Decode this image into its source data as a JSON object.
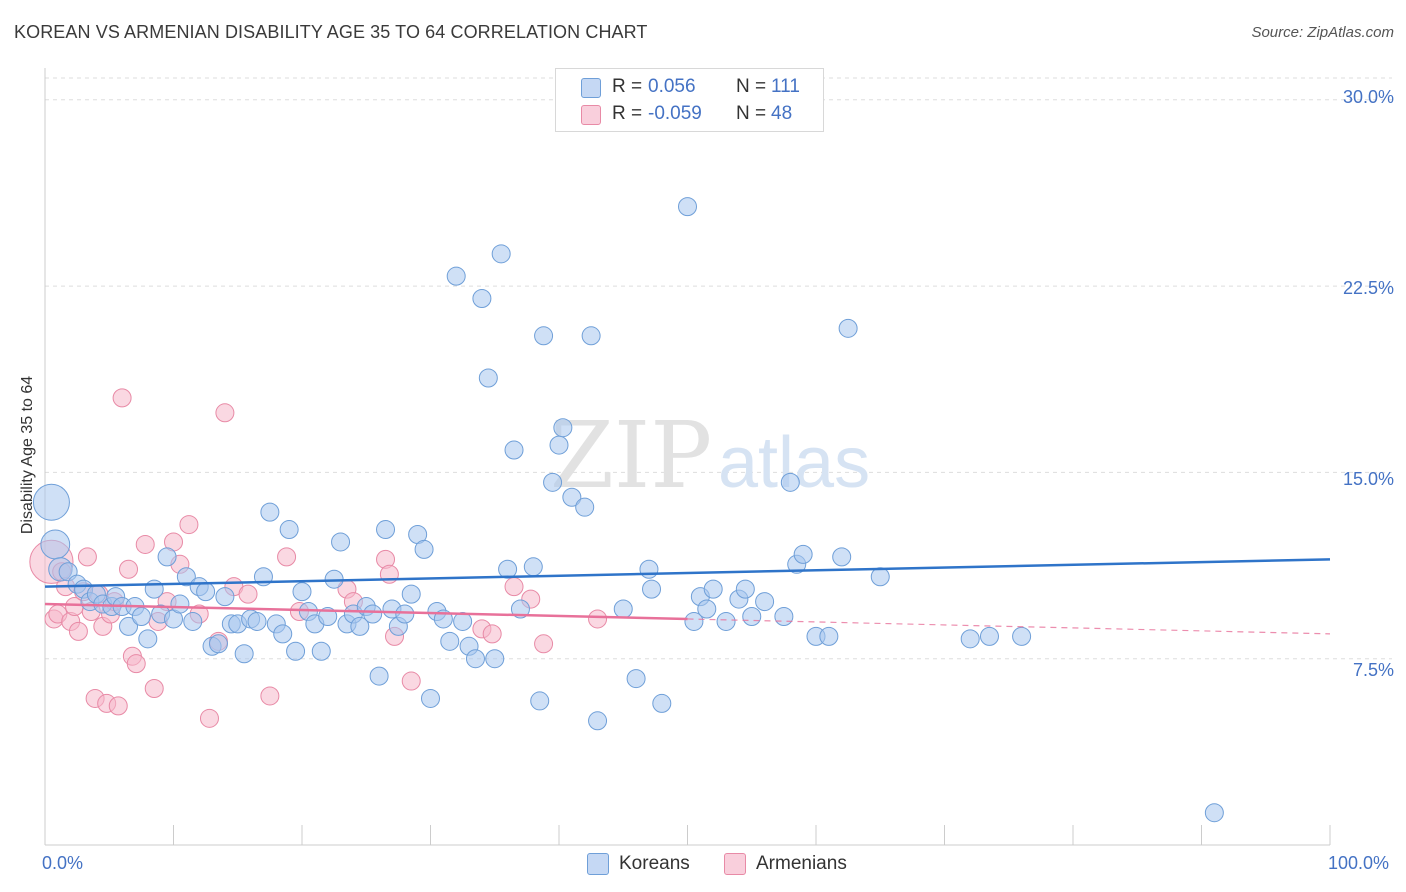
{
  "header": {
    "title": "KOREAN VS ARMENIAN DISABILITY AGE 35 TO 64 CORRELATION CHART",
    "source": "Source: ZipAtlas.com"
  },
  "watermark": {
    "part1": "ZIP",
    "part2": "atlas"
  },
  "colors": {
    "koreans_fill": "#a8c6ee",
    "koreans_stroke": "#6f9fd8",
    "koreans_line": "#2f74c9",
    "armenians_fill": "#f5b8cb",
    "armenians_stroke": "#e88aa6",
    "armenians_line": "#e8719a",
    "value_text": "#4472c4",
    "grid": "#dddddd"
  },
  "legend": {
    "rows": [
      {
        "r_label": "R =",
        "r_value": " 0.056",
        "n_label": "N =",
        "n_value": "111"
      },
      {
        "r_label": "R =",
        "r_value": "-0.059",
        "n_label": "N =",
        "n_value": "48"
      }
    ],
    "bottom": [
      {
        "label": "Koreans"
      },
      {
        "label": "Armenians"
      }
    ]
  },
  "chart_data": {
    "type": "scatter",
    "title": "KOREAN VS ARMENIAN DISABILITY AGE 35 TO 64 CORRELATION CHART",
    "xlabel": "",
    "ylabel": "Disability Age 35 to 64",
    "xlim": [
      0,
      100
    ],
    "ylim": [
      0,
      31.2
    ],
    "x_tick_labels": [
      "0.0%",
      "100.0%"
    ],
    "y_ticks": [
      7.5,
      15.0,
      22.5,
      30.0
    ],
    "y_tick_labels": [
      "7.5%",
      "15.0%",
      "22.5%",
      "30.0%"
    ],
    "grid": true,
    "legend_position": "top-center",
    "series": [
      {
        "name": "Koreans",
        "R": 0.056,
        "N": 111,
        "trend": {
          "x": [
            0,
            100
          ],
          "y": [
            10.4,
            11.5
          ]
        },
        "points": [
          {
            "x": 0.5,
            "y": 13.8,
            "s": 2
          },
          {
            "x": 0.8,
            "y": 12.1,
            "s": 1.6
          },
          {
            "x": 1.2,
            "y": 11.1,
            "s": 1.3
          },
          {
            "x": 1.8,
            "y": 11.0
          },
          {
            "x": 2.5,
            "y": 10.5
          },
          {
            "x": 3.0,
            "y": 10.3
          },
          {
            "x": 3.5,
            "y": 9.8
          },
          {
            "x": 4.0,
            "y": 10.1
          },
          {
            "x": 4.5,
            "y": 9.7
          },
          {
            "x": 5.2,
            "y": 9.6
          },
          {
            "x": 5.5,
            "y": 10.0
          },
          {
            "x": 6.0,
            "y": 9.6
          },
          {
            "x": 6.5,
            "y": 8.8
          },
          {
            "x": 7.0,
            "y": 9.6
          },
          {
            "x": 7.5,
            "y": 9.2
          },
          {
            "x": 8.0,
            "y": 8.3
          },
          {
            "x": 8.5,
            "y": 10.3
          },
          {
            "x": 9.0,
            "y": 9.3
          },
          {
            "x": 9.5,
            "y": 11.6
          },
          {
            "x": 10.0,
            "y": 9.1
          },
          {
            "x": 10.5,
            "y": 9.7
          },
          {
            "x": 11.0,
            "y": 10.8
          },
          {
            "x": 11.5,
            "y": 9.0
          },
          {
            "x": 12.0,
            "y": 10.4
          },
          {
            "x": 12.5,
            "y": 10.2
          },
          {
            "x": 13.0,
            "y": 8.0
          },
          {
            "x": 13.5,
            "y": 8.1
          },
          {
            "x": 14.0,
            "y": 10.0
          },
          {
            "x": 14.5,
            "y": 8.9
          },
          {
            "x": 15.0,
            "y": 8.9
          },
          {
            "x": 15.5,
            "y": 7.7
          },
          {
            "x": 16.0,
            "y": 9.1
          },
          {
            "x": 16.5,
            "y": 9.0
          },
          {
            "x": 17.0,
            "y": 10.8
          },
          {
            "x": 17.5,
            "y": 13.4
          },
          {
            "x": 18.0,
            "y": 8.9
          },
          {
            "x": 18.5,
            "y": 8.5
          },
          {
            "x": 19.0,
            "y": 12.7
          },
          {
            "x": 19.5,
            "y": 7.8
          },
          {
            "x": 20.0,
            "y": 10.2
          },
          {
            "x": 20.5,
            "y": 9.4
          },
          {
            "x": 21.0,
            "y": 8.9
          },
          {
            "x": 21.5,
            "y": 7.8
          },
          {
            "x": 22.0,
            "y": 9.2
          },
          {
            "x": 22.5,
            "y": 10.7
          },
          {
            "x": 23.0,
            "y": 12.2
          },
          {
            "x": 23.5,
            "y": 8.9
          },
          {
            "x": 24.0,
            "y": 9.3
          },
          {
            "x": 24.5,
            "y": 8.8
          },
          {
            "x": 25.0,
            "y": 9.6
          },
          {
            "x": 25.5,
            "y": 9.3
          },
          {
            "x": 26.0,
            "y": 6.8
          },
          {
            "x": 26.5,
            "y": 12.7
          },
          {
            "x": 27.0,
            "y": 9.5
          },
          {
            "x": 27.5,
            "y": 8.8
          },
          {
            "x": 28.0,
            "y": 9.3
          },
          {
            "x": 28.5,
            "y": 10.1
          },
          {
            "x": 29.0,
            "y": 12.5
          },
          {
            "x": 29.5,
            "y": 11.9
          },
          {
            "x": 30.0,
            "y": 5.9
          },
          {
            "x": 30.5,
            "y": 9.4
          },
          {
            "x": 31.0,
            "y": 9.1
          },
          {
            "x": 31.5,
            "y": 8.2
          },
          {
            "x": 32.0,
            "y": 22.9
          },
          {
            "x": 32.5,
            "y": 9.0
          },
          {
            "x": 33.0,
            "y": 8.0
          },
          {
            "x": 33.5,
            "y": 7.5
          },
          {
            "x": 34.0,
            "y": 22.0
          },
          {
            "x": 34.5,
            "y": 18.8
          },
          {
            "x": 35.0,
            "y": 7.5
          },
          {
            "x": 35.5,
            "y": 23.8
          },
          {
            "x": 36.0,
            "y": 11.1
          },
          {
            "x": 36.5,
            "y": 15.9
          },
          {
            "x": 37.0,
            "y": 9.5
          },
          {
            "x": 38.0,
            "y": 11.2
          },
          {
            "x": 38.5,
            "y": 5.8
          },
          {
            "x": 38.8,
            "y": 20.5
          },
          {
            "x": 39.5,
            "y": 14.6
          },
          {
            "x": 40.0,
            "y": 16.1
          },
          {
            "x": 40.3,
            "y": 16.8
          },
          {
            "x": 41.0,
            "y": 14.0
          },
          {
            "x": 42.0,
            "y": 13.6
          },
          {
            "x": 42.5,
            "y": 20.5
          },
          {
            "x": 43.0,
            "y": 5.0
          },
          {
            "x": 45.0,
            "y": 9.5
          },
          {
            "x": 46.0,
            "y": 6.7
          },
          {
            "x": 47.0,
            "y": 11.1
          },
          {
            "x": 47.2,
            "y": 10.3
          },
          {
            "x": 48.0,
            "y": 5.7
          },
          {
            "x": 50.0,
            "y": 25.7
          },
          {
            "x": 50.5,
            "y": 9.0
          },
          {
            "x": 51.0,
            "y": 10.0
          },
          {
            "x": 51.5,
            "y": 9.5
          },
          {
            "x": 52.0,
            "y": 10.3
          },
          {
            "x": 53.0,
            "y": 9.0
          },
          {
            "x": 54.0,
            "y": 9.9
          },
          {
            "x": 54.5,
            "y": 10.3
          },
          {
            "x": 55.0,
            "y": 9.2
          },
          {
            "x": 56.0,
            "y": 9.8
          },
          {
            "x": 57.5,
            "y": 9.2
          },
          {
            "x": 58.0,
            "y": 14.6
          },
          {
            "x": 58.5,
            "y": 11.3
          },
          {
            "x": 59.0,
            "y": 11.7
          },
          {
            "x": 60.0,
            "y": 8.4
          },
          {
            "x": 61.0,
            "y": 8.4
          },
          {
            "x": 62.0,
            "y": 11.6
          },
          {
            "x": 62.5,
            "y": 20.8
          },
          {
            "x": 65.0,
            "y": 10.8
          },
          {
            "x": 72.0,
            "y": 8.3
          },
          {
            "x": 73.5,
            "y": 8.4
          },
          {
            "x": 76.0,
            "y": 8.4
          },
          {
            "x": 91.0,
            "y": 1.3
          }
        ]
      },
      {
        "name": "Armenians",
        "R": -0.059,
        "N": 48,
        "trend": {
          "x": [
            0,
            50
          ],
          "y": [
            9.7,
            9.1
          ]
        },
        "trend_extension": {
          "x": [
            50,
            100
          ],
          "y": [
            9.1,
            8.5
          ]
        },
        "points": [
          {
            "x": 0.5,
            "y": 11.4,
            "s": 2.4
          },
          {
            "x": 0.7,
            "y": 9.1
          },
          {
            "x": 1.0,
            "y": 9.3
          },
          {
            "x": 1.3,
            "y": 11.0
          },
          {
            "x": 1.6,
            "y": 10.4
          },
          {
            "x": 2.0,
            "y": 9.0
          },
          {
            "x": 2.3,
            "y": 9.6
          },
          {
            "x": 2.6,
            "y": 8.6
          },
          {
            "x": 3.0,
            "y": 10.2
          },
          {
            "x": 3.3,
            "y": 11.6
          },
          {
            "x": 3.6,
            "y": 9.4
          },
          {
            "x": 3.9,
            "y": 5.9
          },
          {
            "x": 4.2,
            "y": 10.1
          },
          {
            "x": 4.5,
            "y": 8.8
          },
          {
            "x": 4.8,
            "y": 5.7
          },
          {
            "x": 5.1,
            "y": 9.3
          },
          {
            "x": 5.4,
            "y": 9.8
          },
          {
            "x": 5.7,
            "y": 5.6
          },
          {
            "x": 6.0,
            "y": 18.0
          },
          {
            "x": 6.5,
            "y": 11.1
          },
          {
            "x": 6.8,
            "y": 7.6
          },
          {
            "x": 7.1,
            "y": 7.3
          },
          {
            "x": 7.8,
            "y": 12.1
          },
          {
            "x": 8.5,
            "y": 6.3
          },
          {
            "x": 8.8,
            "y": 9.0
          },
          {
            "x": 9.5,
            "y": 9.8
          },
          {
            "x": 10.0,
            "y": 12.2
          },
          {
            "x": 10.5,
            "y": 11.3
          },
          {
            "x": 11.2,
            "y": 12.9
          },
          {
            "x": 12.0,
            "y": 9.3
          },
          {
            "x": 12.8,
            "y": 5.1
          },
          {
            "x": 13.5,
            "y": 8.2
          },
          {
            "x": 14.0,
            "y": 17.4
          },
          {
            "x": 14.7,
            "y": 10.4
          },
          {
            "x": 15.8,
            "y": 10.1
          },
          {
            "x": 17.5,
            "y": 6.0
          },
          {
            "x": 18.8,
            "y": 11.6
          },
          {
            "x": 19.8,
            "y": 9.4
          },
          {
            "x": 23.5,
            "y": 10.3
          },
          {
            "x": 24.0,
            "y": 9.8
          },
          {
            "x": 26.5,
            "y": 11.5
          },
          {
            "x": 26.8,
            "y": 10.9
          },
          {
            "x": 27.2,
            "y": 8.4
          },
          {
            "x": 28.5,
            "y": 6.6
          },
          {
            "x": 34.0,
            "y": 8.7
          },
          {
            "x": 34.8,
            "y": 8.5
          },
          {
            "x": 36.5,
            "y": 10.4
          },
          {
            "x": 37.8,
            "y": 9.9
          },
          {
            "x": 38.8,
            "y": 8.1
          },
          {
            "x": 43.0,
            "y": 9.1
          }
        ]
      }
    ]
  }
}
